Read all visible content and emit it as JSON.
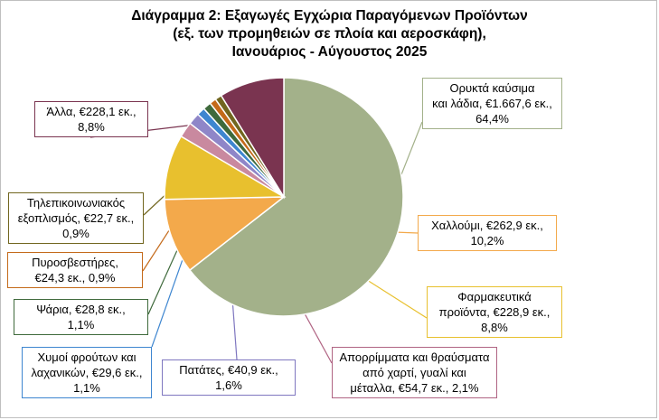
{
  "chart_data": {
    "type": "pie",
    "title_lines": [
      "Διάγραμμα 2: Εξαγωγές Εγχώρια Παραγόμενων Προϊόντων",
      "(εξ. των προμηθειών σε πλοία και αεροσκάφη),",
      "Ιανουάριος - Αύγουστος 2025"
    ],
    "slices": [
      {
        "label_lines": [
          "Ορυκτά καύσιμα",
          "και λάδια, €1.667,6 εκ.,",
          "64,4%"
        ],
        "value": 64.4,
        "color": "#a3b18a",
        "border": "#a3b18a"
      },
      {
        "label_lines": [
          "Χαλλούμι, €262,9 εκ.,",
          "10,2%"
        ],
        "value": 10.2,
        "color": "#f3a94b",
        "border": "#f3a94b"
      },
      {
        "label_lines": [
          "Φαρμακευτικά",
          "προϊόντα, €228,9 εκ.,",
          "8,8%"
        ],
        "value": 8.8,
        "color": "#e8c02e",
        "border": "#e8c02e"
      },
      {
        "label_lines": [
          "Απορρίμματα και θραύσματα",
          "από χαρτί, γυαλί και",
          "μέταλλα, €54,7 εκ., 2,1%"
        ],
        "value": 2.1,
        "color": "#c9899f",
        "border": "#b06483"
      },
      {
        "label_lines": [
          "Πατάτες, €40,9 εκ.,",
          "1,6%"
        ],
        "value": 1.6,
        "color": "#8f86c8",
        "border": "#7f77c0"
      },
      {
        "label_lines": [
          "Χυμοί φρούτων και",
          "λαχανικών, €29,6 εκ.,",
          "1,1%"
        ],
        "value": 1.1,
        "color": "#3e86d0",
        "border": "#3e86d0"
      },
      {
        "label_lines": [
          "Ψάρια, €28,8 εκ.,",
          "1,1%"
        ],
        "value": 1.1,
        "color": "#3f6a3c",
        "border": "#3f6a3c"
      },
      {
        "label_lines": [
          "Πυροσβεστήρες,",
          "€24,3 εκ., 0,9%"
        ],
        "value": 0.9,
        "color": "#c46a1a",
        "border": "#c46a1a"
      },
      {
        "label_lines": [
          "Τηλεπικοινωνιακός",
          "εξοπλισμός, €22,7 εκ.,",
          "0,9%"
        ],
        "value": 0.9,
        "color": "#71661f",
        "border": "#71661f"
      },
      {
        "label_lines": [
          "Άλλα, €228,1 εκ.,",
          "8,8%"
        ],
        "value": 8.8,
        "color": "#7a3450",
        "border": "#7a3450"
      }
    ]
  }
}
